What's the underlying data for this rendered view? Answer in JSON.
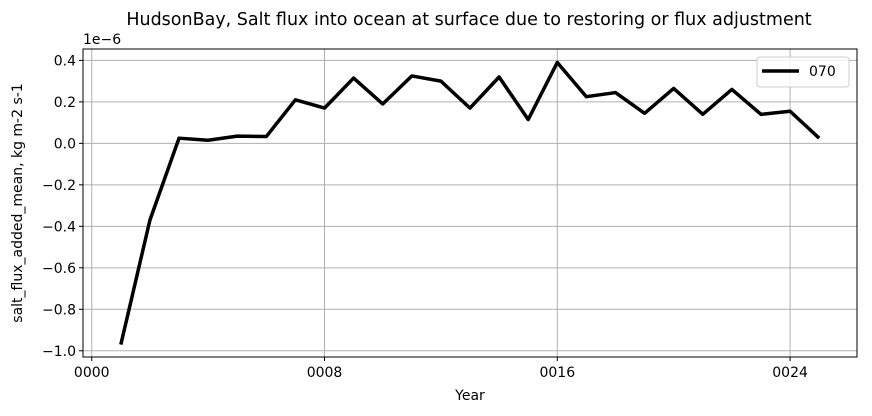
{
  "chart_data": {
    "type": "line",
    "title": "HudsonBay, Salt flux into ocean at surface due to restoring or flux adjustment",
    "xlabel": "Year",
    "ylabel": "salt_flux_added_mean, kg m-2 s-1",
    "y_offset_label": "1e−6",
    "xlim": [
      -0.3,
      26.3
    ],
    "ylim": [
      -1.03,
      0.455
    ],
    "x_ticks": [
      0,
      8,
      16,
      24
    ],
    "x_tick_labels": [
      "0000",
      "0008",
      "0016",
      "0024"
    ],
    "y_ticks": [
      0.4,
      0.2,
      0.0,
      -0.2,
      -0.4,
      -0.6,
      -0.8,
      -1.0
    ],
    "y_tick_labels": [
      "0.4",
      "0.2",
      "0.0",
      "−0.2",
      "−0.4",
      "−0.6",
      "−0.8",
      "−1.0"
    ],
    "grid": true,
    "legend_position": "top-right",
    "series": [
      {
        "name": "070",
        "color": "#000000",
        "x": [
          1,
          2,
          3,
          4,
          5,
          6,
          7,
          8,
          9,
          10,
          11,
          12,
          13,
          14,
          15,
          16,
          17,
          18,
          19,
          20,
          21,
          22,
          23,
          24,
          25
        ],
        "values": [
          -0.97,
          -0.37,
          0.025,
          0.015,
          0.035,
          0.033,
          0.21,
          0.17,
          0.315,
          0.19,
          0.325,
          0.3,
          0.17,
          0.32,
          0.115,
          0.39,
          0.225,
          0.245,
          0.145,
          0.265,
          0.14,
          0.26,
          0.14,
          0.155,
          0.025
        ]
      }
    ]
  }
}
